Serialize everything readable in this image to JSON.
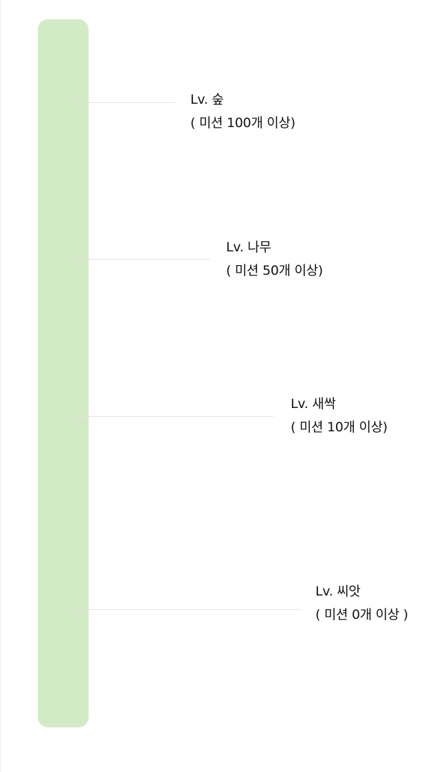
{
  "levels": [
    {
      "name": "Lv. 숲",
      "requirement": "( 미션 100개 이상)"
    },
    {
      "name": "Lv. 나무",
      "requirement": "( 미션 50개 이상)"
    },
    {
      "name": "Lv. 새싹",
      "requirement": "( 미션 10개 이상)"
    },
    {
      "name": "Lv. 씨앗",
      "requirement": "( 미션 0개 이상 )"
    }
  ],
  "colors": {
    "bar": "#d3eac6",
    "connector": "#e4e4e4",
    "text": "#111111"
  }
}
